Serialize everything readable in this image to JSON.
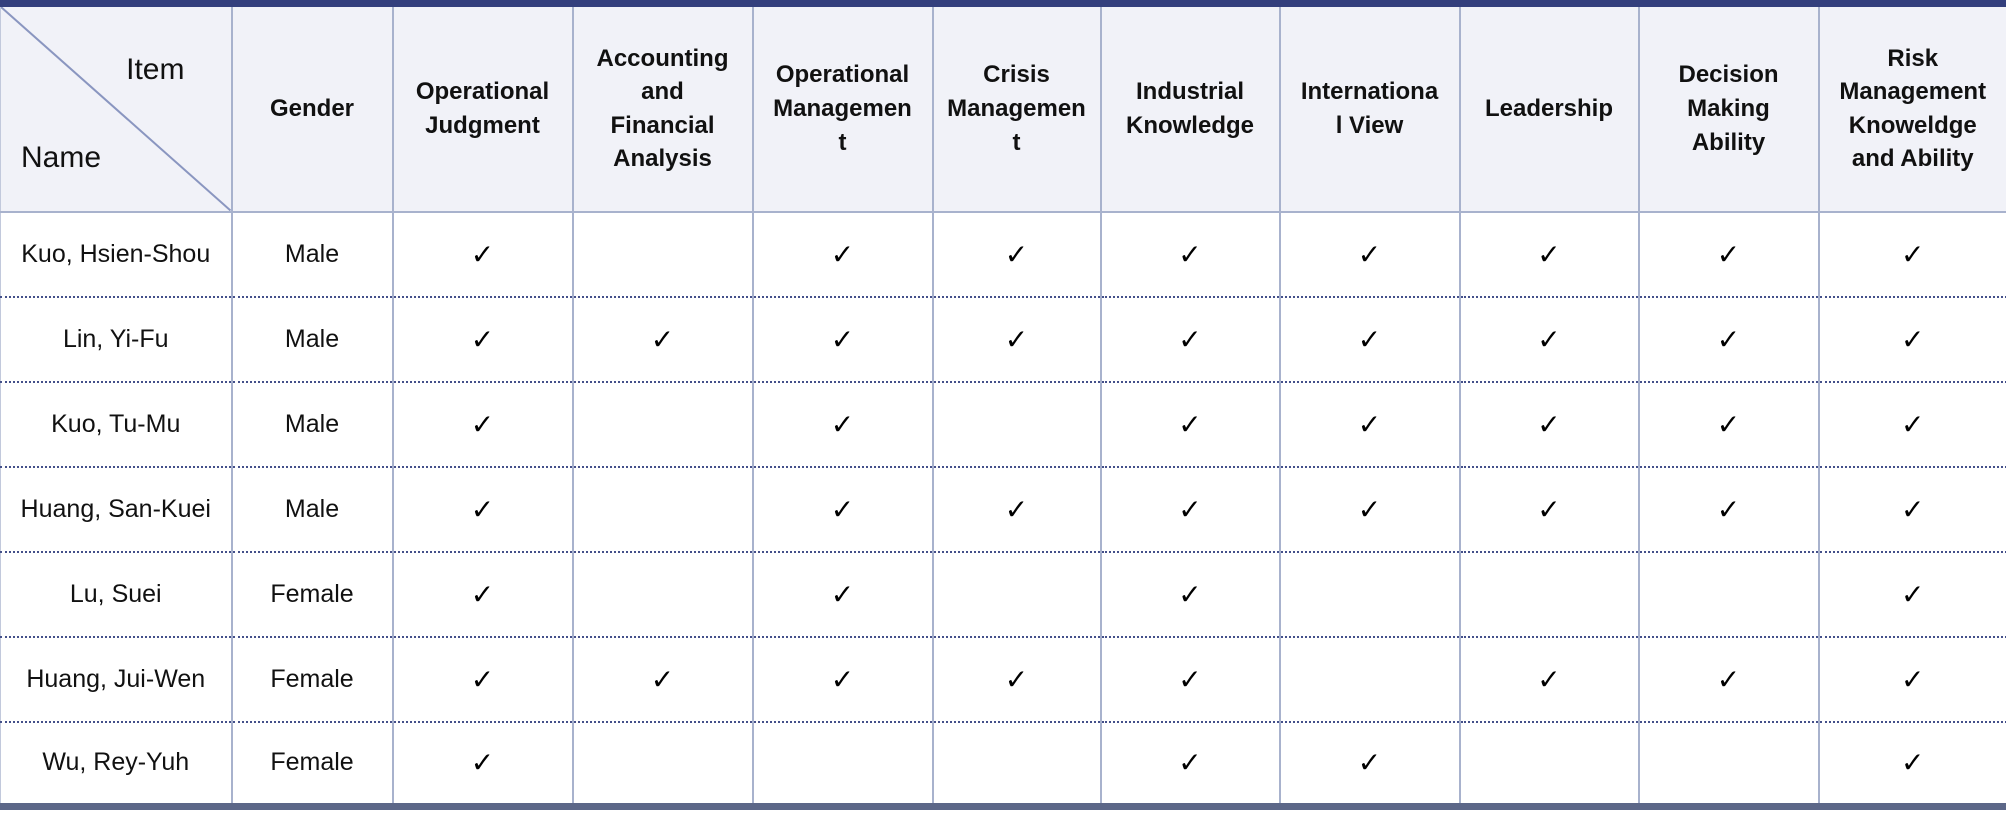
{
  "header": {
    "corner": {
      "item_label": "Item",
      "name_label": "Name"
    },
    "columns": [
      "Gender",
      "Operational\nJudgment",
      "Accounting\nand\nFinancial\nAnalysis",
      "Operational\nManagemen\nt",
      "Crisis\nManagemen\nt",
      "Industrial\nKnowledge",
      "Internationa\nl View",
      "Leadership",
      "Decision\nMaking\nAbility",
      "Risk\nManagement\nKnoweldge\nand Ability"
    ]
  },
  "check_glyph": "✓",
  "rows": [
    {
      "name": "Kuo, Hsien-Shou",
      "gender": "Male",
      "cells": [
        "✓",
        "",
        "✓",
        "✓",
        "✓",
        "✓",
        "✓",
        "✓",
        "✓"
      ]
    },
    {
      "name": "Lin, Yi-Fu",
      "gender": "Male",
      "cells": [
        "✓",
        "✓",
        "✓",
        "✓",
        "✓",
        "✓",
        "✓",
        "✓",
        "✓"
      ]
    },
    {
      "name": "Kuo, Tu-Mu",
      "gender": "Male",
      "cells": [
        "✓",
        "",
        "✓",
        "",
        "✓",
        "✓",
        "✓",
        "✓",
        "✓"
      ]
    },
    {
      "name": "Huang, San-Kuei",
      "gender": "Male",
      "cells": [
        "✓",
        "",
        "✓",
        "✓",
        "✓",
        "✓",
        "✓",
        "✓",
        "✓"
      ]
    },
    {
      "name": "Lu, Suei",
      "gender": "Female",
      "cells": [
        "✓",
        "",
        "✓",
        "",
        "✓",
        "",
        "",
        "",
        "✓"
      ]
    },
    {
      "name": "Huang, Jui-Wen",
      "gender": "Female",
      "cells": [
        "✓",
        "✓",
        "✓",
        "✓",
        "✓",
        "",
        "✓",
        "✓",
        "✓"
      ]
    },
    {
      "name": "Wu, Rey-Yuh",
      "gender": "Female",
      "cells": [
        "✓",
        "",
        "",
        "",
        "✓",
        "✓",
        "",
        "",
        "✓"
      ]
    }
  ],
  "colors": {
    "top_border": "#333F7D",
    "bottom_border": "#5C6788",
    "header_bg": "#F1F2F8",
    "grid_line": "#A8B2CD",
    "dotted_line": "#44508A",
    "diagonal_line": "#8A96C0",
    "text": "#111111"
  }
}
